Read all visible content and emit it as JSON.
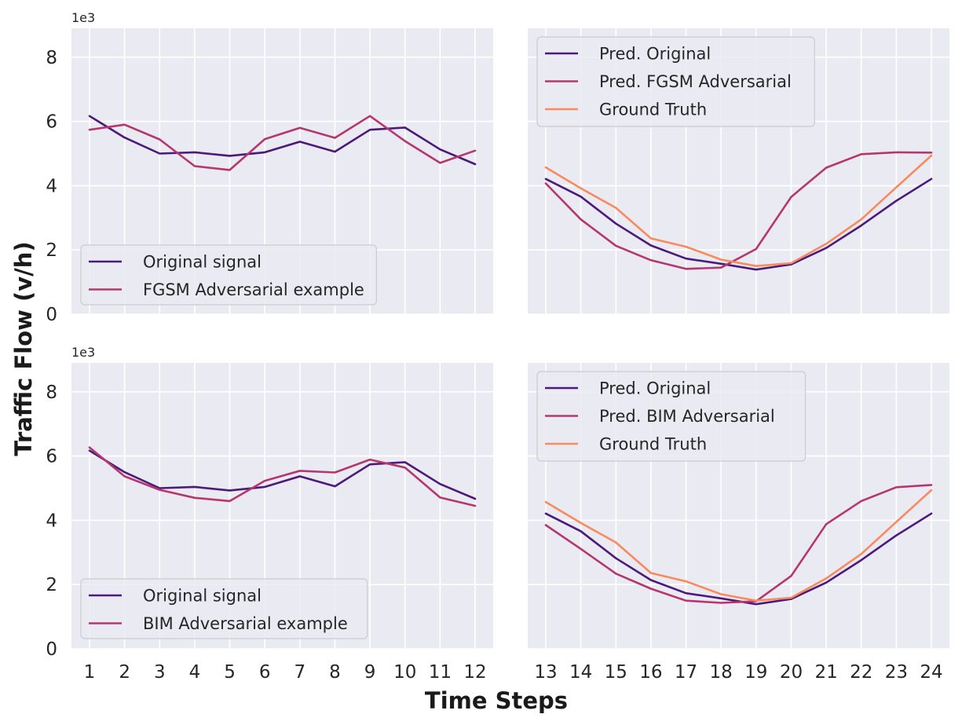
{
  "figure": {
    "ylabel": "Traffic Flow (v/h)",
    "xlabel": "Time Steps",
    "y_multiplier": "1e3"
  },
  "colors": {
    "background": "#eaeaf2",
    "grid": "#ffffff",
    "original": "#4b1a7a",
    "adversarial": "#b5376e",
    "ground_truth": "#f98a5e"
  },
  "chart_data": [
    {
      "type": "line",
      "panel": "top-left",
      "x": [
        1,
        2,
        3,
        4,
        5,
        6,
        7,
        8,
        9,
        10,
        11,
        12
      ],
      "ylim": [
        0,
        8900
      ],
      "yticks": [
        0,
        2,
        4,
        6,
        8
      ],
      "ytick_scale": "1e3",
      "grid": true,
      "legend_position": "lower-left",
      "series": [
        {
          "name": "Original signal",
          "color": "original",
          "values": [
            6170,
            5500,
            5000,
            5040,
            4930,
            5040,
            5370,
            5060,
            5740,
            5810,
            5130,
            4670
          ]
        },
        {
          "name": "FGSM Adversarial example",
          "color": "adversarial",
          "values": [
            5740,
            5900,
            5440,
            4610,
            4490,
            5450,
            5800,
            5490,
            6170,
            5390,
            4710,
            5090
          ]
        }
      ]
    },
    {
      "type": "line",
      "panel": "top-right",
      "x": [
        13,
        14,
        15,
        16,
        17,
        18,
        19,
        20,
        21,
        22,
        23,
        24
      ],
      "ylim": [
        0,
        8900
      ],
      "grid": true,
      "legend_position": "upper-left",
      "series": [
        {
          "name": "Pred. Original",
          "color": "original",
          "values": [
            4210,
            3660,
            2820,
            2140,
            1730,
            1570,
            1390,
            1550,
            2060,
            2760,
            3530,
            4210
          ]
        },
        {
          "name": "Pred. FGSM Adversarial",
          "color": "adversarial",
          "values": [
            4070,
            2950,
            2130,
            1680,
            1410,
            1450,
            2030,
            3650,
            4560,
            4980,
            5040,
            5030
          ]
        },
        {
          "name": "Ground Truth",
          "color": "ground_truth",
          "values": [
            4570,
            3920,
            3310,
            2360,
            2100,
            1700,
            1500,
            1590,
            2190,
            2950,
            3950,
            4940
          ]
        }
      ]
    },
    {
      "type": "line",
      "panel": "bottom-left",
      "x": [
        1,
        2,
        3,
        4,
        5,
        6,
        7,
        8,
        9,
        10,
        11,
        12
      ],
      "xticks": [
        "1",
        "2",
        "3",
        "4",
        "5",
        "6",
        "7",
        "8",
        "9",
        "10",
        "11",
        "12"
      ],
      "ylim": [
        0,
        8900
      ],
      "yticks": [
        0,
        2,
        4,
        6,
        8
      ],
      "ytick_scale": "1e3",
      "grid": true,
      "legend_position": "lower-left",
      "series": [
        {
          "name": "Original signal",
          "color": "original",
          "values": [
            6170,
            5500,
            5000,
            5040,
            4930,
            5040,
            5370,
            5060,
            5740,
            5810,
            5130,
            4670
          ]
        },
        {
          "name": "BIM Adversarial example",
          "color": "adversarial",
          "values": [
            6270,
            5370,
            4950,
            4700,
            4600,
            5230,
            5540,
            5490,
            5890,
            5640,
            4710,
            4450
          ]
        }
      ]
    },
    {
      "type": "line",
      "panel": "bottom-right",
      "x": [
        13,
        14,
        15,
        16,
        17,
        18,
        19,
        20,
        21,
        22,
        23,
        24
      ],
      "xticks": [
        "13",
        "14",
        "15",
        "16",
        "17",
        "18",
        "19",
        "20",
        "21",
        "22",
        "23",
        "24"
      ],
      "ylim": [
        0,
        8900
      ],
      "grid": true,
      "legend_position": "upper-left",
      "series": [
        {
          "name": "Pred. Original",
          "color": "original",
          "values": [
            4210,
            3660,
            2820,
            2140,
            1730,
            1570,
            1390,
            1550,
            2060,
            2760,
            3530,
            4210
          ]
        },
        {
          "name": "Pred. BIM Adversarial",
          "color": "adversarial",
          "values": [
            3850,
            3110,
            2340,
            1870,
            1500,
            1430,
            1480,
            2270,
            3880,
            4600,
            5030,
            5100
          ]
        },
        {
          "name": "Ground Truth",
          "color": "ground_truth",
          "values": [
            4570,
            3920,
            3310,
            2360,
            2100,
            1700,
            1500,
            1590,
            2190,
            2950,
            3950,
            4940
          ]
        }
      ]
    }
  ]
}
